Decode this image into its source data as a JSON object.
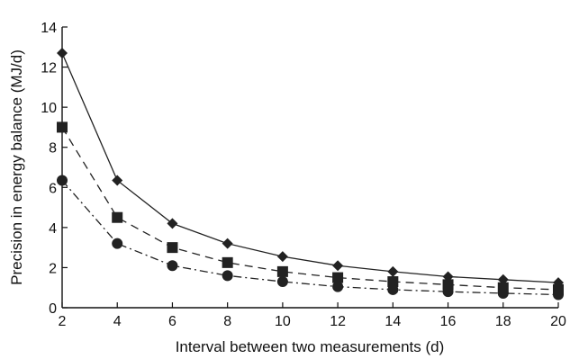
{
  "chart_data": {
    "type": "line",
    "xlabel": "Interval between two measurements (d)",
    "ylabel": "Precision in energy  balance (MJ/d)",
    "xlim": [
      2,
      20
    ],
    "ylim": [
      0,
      14
    ],
    "xticks": [
      "2",
      "4",
      "6",
      "8",
      "10",
      "12",
      "14",
      "16",
      "18",
      "20"
    ],
    "yticks": [
      "0",
      "2",
      "4",
      "6",
      "8",
      "10",
      "12",
      "14"
    ],
    "grid": false,
    "legend": "none",
    "x": [
      2,
      4,
      6,
      8,
      10,
      12,
      14,
      16,
      18,
      20
    ],
    "series": [
      {
        "marker": "diamond",
        "line_style": "solid",
        "color": "#222222",
        "values": [
          12.7,
          6.35,
          4.2,
          3.2,
          2.55,
          2.1,
          1.8,
          1.55,
          1.4,
          1.25
        ]
      },
      {
        "marker": "square",
        "line_style": "dashed",
        "color": "#222222",
        "values": [
          9.0,
          4.5,
          3.0,
          2.25,
          1.8,
          1.5,
          1.3,
          1.15,
          1.0,
          0.9
        ]
      },
      {
        "marker": "circle",
        "line_style": "dash-dot",
        "color": "#222222",
        "values": [
          6.35,
          3.2,
          2.1,
          1.6,
          1.3,
          1.05,
          0.9,
          0.8,
          0.72,
          0.65
        ]
      }
    ]
  }
}
